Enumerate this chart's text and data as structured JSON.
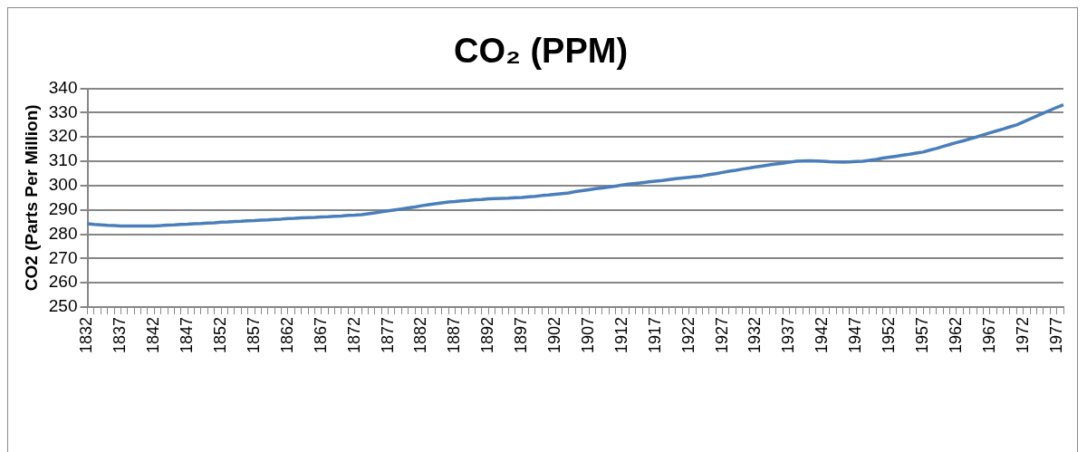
{
  "chart_data": {
    "type": "line",
    "title": "CO₂ (PPM)",
    "ylabel": "CO2 (Parts Per Million)",
    "categories": [
      "1832",
      null,
      null,
      null,
      null,
      "1837",
      null,
      null,
      null,
      null,
      "1842",
      null,
      null,
      null,
      null,
      "1847",
      null,
      null,
      null,
      null,
      "1852",
      null,
      null,
      null,
      null,
      "1857",
      null,
      null,
      null,
      null,
      "1862",
      null,
      null,
      null,
      null,
      "1867",
      null,
      null,
      null,
      null,
      "1872",
      null,
      null,
      null,
      null,
      "1877",
      null,
      null,
      null,
      null,
      "1882",
      null,
      null,
      null,
      null,
      "1887",
      null,
      null,
      null,
      null,
      "1892",
      null,
      null,
      null,
      null,
      "1897",
      null,
      null,
      null,
      null,
      "1902",
      null,
      null,
      null,
      null,
      "1907",
      null,
      null,
      null,
      null,
      "1912",
      null,
      null,
      null,
      null,
      "1917",
      null,
      null,
      null,
      null,
      "1922",
      null,
      null,
      null,
      null,
      "1927",
      null,
      null,
      null,
      null,
      "1932",
      null,
      null,
      null,
      null,
      "1937",
      null,
      null,
      null,
      null,
      "1942",
      null,
      null,
      null,
      null,
      "1947",
      null,
      null,
      null,
      null,
      "1952",
      null,
      null,
      null,
      null,
      "1957",
      null,
      null,
      null,
      null,
      "1962",
      null,
      null,
      null,
      null,
      "1967",
      null,
      null,
      null,
      null,
      "1972",
      null,
      null,
      null,
      null,
      "1977",
      null
    ],
    "series": [
      {
        "color": "#4a7ebb",
        "values": [
          284.3,
          284.0,
          283.8,
          283.6,
          283.5,
          283.4,
          283.4,
          283.4,
          283.4,
          283.4,
          283.4,
          283.5,
          283.7,
          283.8,
          284.0,
          284.1,
          284.3,
          284.4,
          284.6,
          284.7,
          284.9,
          285.0,
          285.2,
          285.3,
          285.5,
          285.6,
          285.8,
          285.9,
          286.1,
          286.2,
          286.4,
          286.5,
          286.7,
          286.8,
          286.9,
          287.1,
          287.2,
          287.4,
          287.5,
          287.7,
          287.8,
          288.0,
          288.4,
          288.8,
          289.2,
          289.6,
          290.0,
          290.4,
          290.8,
          291.2,
          291.7,
          292.1,
          292.5,
          292.9,
          293.2,
          293.4,
          293.7,
          293.9,
          294.2,
          294.3,
          294.5,
          294.6,
          294.7,
          294.8,
          295.0,
          295.1,
          295.4,
          295.6,
          295.9,
          296.1,
          296.4,
          296.7,
          297.0,
          297.5,
          297.9,
          298.3,
          298.7,
          299.0,
          299.4,
          299.8,
          300.2,
          300.6,
          300.9,
          301.2,
          301.5,
          301.8,
          302.1,
          302.5,
          302.8,
          303.1,
          303.4,
          303.7,
          304.0,
          304.5,
          304.9,
          305.4,
          305.9,
          306.3,
          306.8,
          307.2,
          307.7,
          308.1,
          308.5,
          308.9,
          309.2,
          309.6,
          310.0,
          310.1,
          310.2,
          310.1,
          310.0,
          309.8,
          309.7,
          309.6,
          309.7,
          309.9,
          310.0,
          310.4,
          310.8,
          311.3,
          311.7,
          312.1,
          312.5,
          312.9,
          313.4,
          313.8,
          314.6,
          315.3,
          316.1,
          316.9,
          317.7,
          318.4,
          319.2,
          320.0,
          320.9,
          321.7,
          322.5,
          323.3,
          324.2,
          325.0,
          326.2,
          327.4,
          328.6,
          329.8,
          331.0,
          332.2,
          333.3
        ]
      }
    ],
    "ylim": [
      250,
      340
    ],
    "yticks": [
      250,
      260,
      270,
      280,
      290,
      300,
      310,
      320,
      330,
      340
    ],
    "grid": "y",
    "legend": false,
    "marker": "none",
    "line_style": "solid"
  }
}
